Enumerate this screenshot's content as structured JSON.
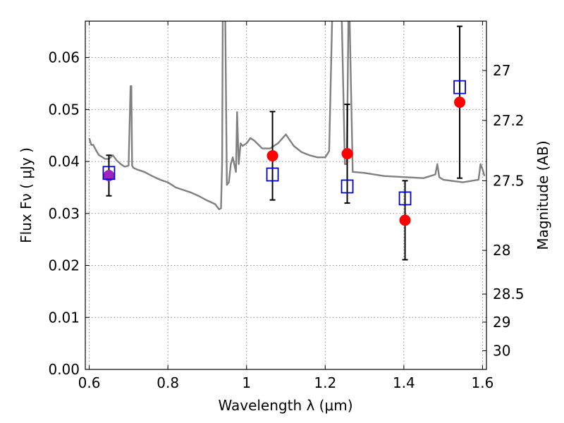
{
  "chart_data": {
    "type": "scatter",
    "title": "",
    "xlabel": "Wavelength  λ (μm)",
    "ylabel": "Flux  Fν  ( μJy )",
    "y2label": "Magnitude (AB)",
    "xlim": [
      0.59,
      1.61
    ],
    "ylim": [
      0.0,
      0.067
    ],
    "grid": true,
    "x_ticks": [
      0.6,
      0.8,
      1.0,
      1.2,
      1.4,
      1.6
    ],
    "x_tick_labels": [
      "0.6",
      "0.8",
      "1",
      "1.2",
      "1.4",
      "1.6"
    ],
    "y_ticks": [
      0.0,
      0.01,
      0.02,
      0.03,
      0.04,
      0.05,
      0.06
    ],
    "y_tick_labels": [
      "0.00",
      "0.01",
      "0.02",
      "0.03",
      "0.04",
      "0.05",
      "0.06"
    ],
    "y2_ticks": [
      {
        "label": "27",
        "flux": 0.0575
      },
      {
        "label": "27.2",
        "flux": 0.0479
      },
      {
        "label": "27.5",
        "flux": 0.0363
      },
      {
        "label": "28",
        "flux": 0.0229
      },
      {
        "label": "28.5",
        "flux": 0.0145
      },
      {
        "label": "29",
        "flux": 0.0091
      },
      {
        "label": "30",
        "flux": 0.0036
      }
    ],
    "colors": {
      "model": "#808080",
      "observed": "#ff0000",
      "model_photometry": "#0000cc",
      "overlap": "#a020c0",
      "errorbar": "#000000",
      "grid": "#8c8c8c"
    },
    "series": [
      {
        "kind": "line",
        "x": [
          0.6,
          0.605,
          0.61,
          0.615,
          0.62,
          0.625,
          0.63,
          0.64,
          0.65,
          0.66,
          0.67,
          0.68,
          0.69,
          0.7,
          0.705,
          0.707,
          0.709,
          0.712,
          0.72,
          0.74,
          0.76,
          0.78,
          0.8,
          0.82,
          0.84,
          0.86,
          0.88,
          0.9,
          0.92,
          0.93,
          0.935,
          0.938,
          0.94,
          0.945,
          0.95,
          0.955,
          0.96,
          0.965,
          0.97,
          0.973,
          0.976,
          0.98,
          0.985,
          0.99,
          1.0,
          1.01,
          1.02,
          1.04,
          1.06,
          1.08,
          1.1,
          1.12,
          1.14,
          1.16,
          1.18,
          1.2,
          1.21,
          1.22,
          1.24,
          1.25,
          1.255,
          1.26,
          1.27,
          1.3,
          1.35,
          1.4,
          1.45,
          1.48,
          1.485,
          1.49,
          1.5,
          1.55,
          1.59,
          1.595,
          1.6,
          1.605
        ],
        "y": [
          0.0445,
          0.0432,
          0.0432,
          0.0425,
          0.0418,
          0.0412,
          0.041,
          0.0405,
          0.0405,
          0.0412,
          0.0402,
          0.0395,
          0.039,
          0.0392,
          0.0545,
          0.0545,
          0.0392,
          0.0388,
          0.0385,
          0.038,
          0.0372,
          0.0365,
          0.036,
          0.035,
          0.0345,
          0.034,
          0.0333,
          0.0325,
          0.0318,
          0.0308,
          0.031,
          0.04,
          0.075,
          0.075,
          0.0355,
          0.036,
          0.0395,
          0.0408,
          0.039,
          0.038,
          0.0495,
          0.0395,
          0.0435,
          0.043,
          0.0435,
          0.0445,
          0.044,
          0.0425,
          0.0425,
          0.0435,
          0.0452,
          0.043,
          0.0418,
          0.0412,
          0.0408,
          0.0408,
          0.042,
          0.075,
          0.075,
          0.0395,
          0.0395,
          0.075,
          0.038,
          0.0378,
          0.0372,
          0.037,
          0.0368,
          0.0375,
          0.0395,
          0.037,
          0.0365,
          0.036,
          0.0365,
          0.0395,
          0.0385,
          0.0372
        ]
      },
      {
        "kind": "errorbar",
        "x": [
          0.65,
          1.066,
          1.256,
          1.403,
          1.542
        ],
        "y": [
          0.0373,
          0.0411,
          0.0415,
          0.0287,
          0.0514
        ],
        "err": [
          0.0039,
          0.0085,
          0.0095,
          0.0076,
          0.0146
        ]
      },
      {
        "kind": "open-square",
        "x": [
          0.65,
          1.066,
          1.256,
          1.403,
          1.542
        ],
        "y": [
          0.0378,
          0.0375,
          0.0352,
          0.0329,
          0.0543
        ]
      }
    ]
  }
}
